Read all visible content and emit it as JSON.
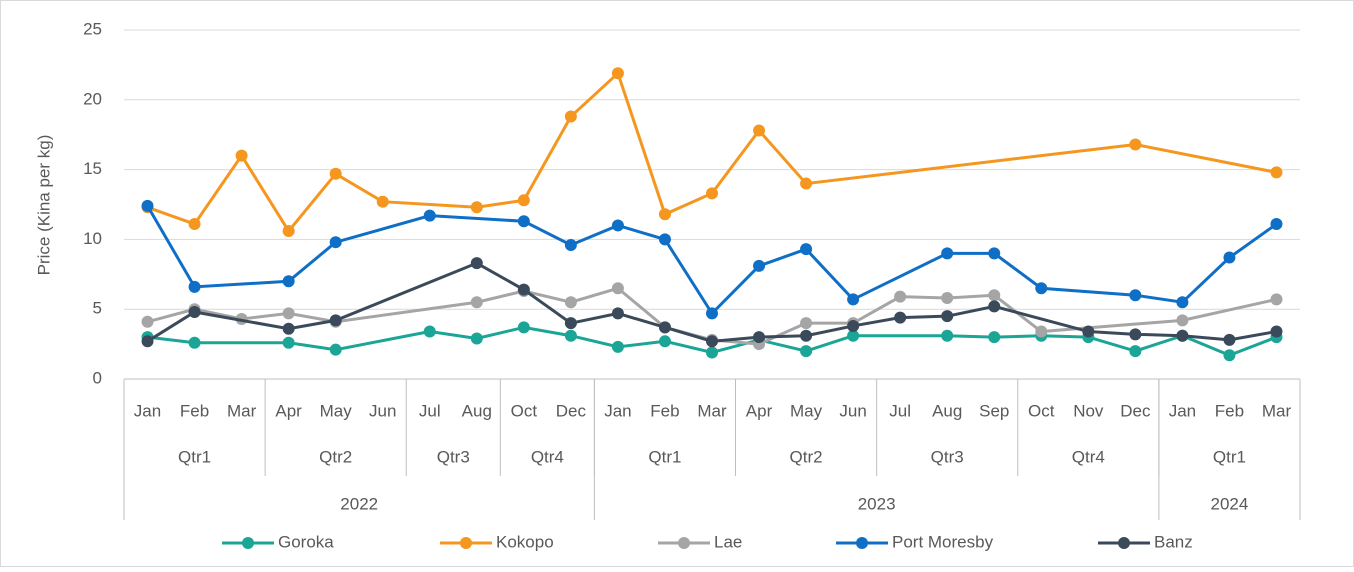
{
  "chart_data": {
    "type": "line",
    "y_label": "Price (Kina per kg)",
    "categories": [
      "Jan",
      "Feb",
      "Mar",
      "Apr",
      "May",
      "Jun",
      "Jul",
      "Aug",
      "Oct",
      "Dec",
      "Jan",
      "Feb",
      "Mar",
      "Apr",
      "May",
      "Jun",
      "Jul",
      "Aug",
      "Sep",
      "Oct",
      "Nov",
      "Dec",
      "Jan",
      "Feb",
      "Mar"
    ],
    "quarters": [
      {
        "label": "Qtr1",
        "count": 3
      },
      {
        "label": "Qtr2",
        "count": 3
      },
      {
        "label": "Qtr3",
        "count": 2
      },
      {
        "label": "Qtr4",
        "count": 2
      },
      {
        "label": "Qtr1",
        "count": 3
      },
      {
        "label": "Qtr2",
        "count": 3
      },
      {
        "label": "Qtr3",
        "count": 3
      },
      {
        "label": "Qtr4",
        "count": 3
      },
      {
        "label": "Qtr1",
        "count": 3
      }
    ],
    "years": [
      {
        "label": "2022",
        "count": 10
      },
      {
        "label": "2023",
        "count": 12
      },
      {
        "label": "2024",
        "count": 3
      }
    ],
    "ylim": [
      0,
      25
    ],
    "yticks": [
      0,
      5,
      10,
      15,
      20,
      25
    ],
    "grid": true,
    "connect_gaps": true,
    "legend": "bottom",
    "series": [
      {
        "name": "Goroka",
        "color": "#1aa596",
        "values": [
          3.0,
          2.6,
          null,
          2.6,
          2.1,
          null,
          3.4,
          2.9,
          3.7,
          3.1,
          2.3,
          2.7,
          1.9,
          2.8,
          2.0,
          3.1,
          null,
          3.1,
          3.0,
          3.1,
          3.0,
          2.0,
          3.1,
          1.7,
          3.0
        ]
      },
      {
        "name": "Kokopo",
        "color": "#f5961e",
        "values": [
          12.3,
          11.1,
          16.0,
          10.6,
          14.7,
          12.7,
          null,
          12.3,
          12.8,
          18.8,
          21.9,
          11.8,
          13.3,
          17.8,
          14.0,
          null,
          null,
          null,
          null,
          null,
          null,
          16.8,
          null,
          null,
          14.8
        ]
      },
      {
        "name": "Lae",
        "color": "#a5a5a5",
        "values": [
          4.1,
          5.0,
          4.3,
          4.7,
          4.1,
          null,
          null,
          5.5,
          6.3,
          5.5,
          6.5,
          3.7,
          2.8,
          2.5,
          4.0,
          4.0,
          5.9,
          5.8,
          6.0,
          3.4,
          null,
          null,
          4.2,
          null,
          5.7
        ]
      },
      {
        "name": "Port Moresby",
        "color": "#0f6fc6",
        "values": [
          12.4,
          6.6,
          null,
          7.0,
          9.8,
          null,
          11.7,
          null,
          11.3,
          9.6,
          11.0,
          10.0,
          4.7,
          8.1,
          9.3,
          5.7,
          null,
          9.0,
          9.0,
          6.5,
          null,
          6.0,
          5.5,
          8.7,
          11.1
        ]
      },
      {
        "name": "Banz",
        "color": "#3b4a5a",
        "values": [
          2.7,
          4.8,
          null,
          3.6,
          4.2,
          null,
          null,
          8.3,
          6.4,
          4.0,
          4.7,
          3.7,
          2.7,
          3.0,
          3.1,
          3.8,
          4.4,
          4.5,
          5.2,
          null,
          3.4,
          3.2,
          3.1,
          2.8,
          3.4
        ]
      }
    ]
  }
}
